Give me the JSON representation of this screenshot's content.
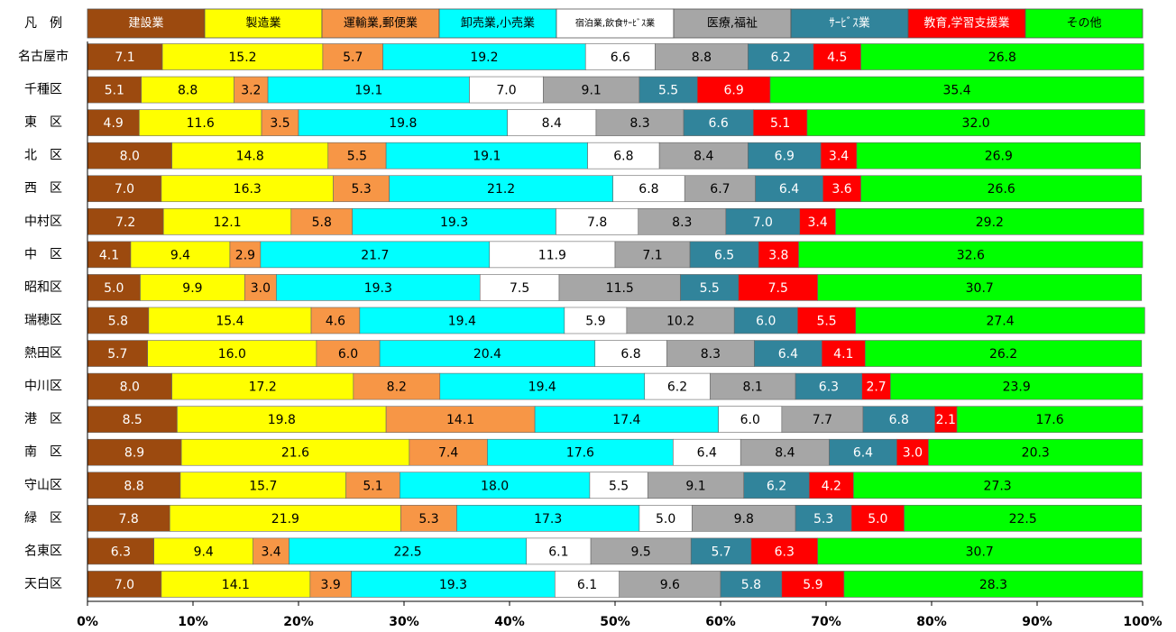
{
  "chart_data": {
    "type": "stacked_bar_horizontal",
    "legend_title": "凡　例",
    "categories": [
      "名古屋市",
      "千種区",
      "東　区",
      "北　区",
      "西　区",
      "中村区",
      "中　区",
      "昭和区",
      "瑞穂区",
      "熱田区",
      "中川区",
      "港　区",
      "南　区",
      "守山区",
      "緑　区",
      "名東区",
      "天白区"
    ],
    "series": [
      {
        "name": "建設業",
        "color": "#9c4a0f",
        "label_color": "#ffffff",
        "values": [
          7.1,
          5.1,
          4.9,
          8.0,
          7.0,
          7.2,
          4.1,
          5.0,
          5.8,
          5.7,
          8.0,
          8.5,
          8.9,
          8.8,
          7.8,
          6.3,
          7.0
        ],
        "value_labels": [
          "7.1",
          "5.1",
          "4.9",
          "8.0",
          "7.0",
          "7.2",
          "4.1",
          "5.0",
          "5.8",
          "5.7",
          "8.0",
          "8.5",
          "8.9",
          "8.8",
          "7.8",
          "6.3",
          "7.0"
        ]
      },
      {
        "name": "製造業",
        "color": "#ffff00",
        "label_color": "#000000",
        "values": [
          15.2,
          8.8,
          11.6,
          14.8,
          16.3,
          12.1,
          9.4,
          9.9,
          15.4,
          16.0,
          17.2,
          19.8,
          21.6,
          15.7,
          21.9,
          9.4,
          14.1
        ],
        "value_labels": [
          "15.2",
          "8.8",
          "11.6",
          "14.8",
          "16.3",
          "12.1",
          "9.4",
          "9.9",
          "15.4",
          "16.0",
          "17.2",
          "19.8",
          "21.6",
          "15.7",
          "21.9",
          "9.4",
          "14.1"
        ]
      },
      {
        "name": "運輸業,郵便業",
        "color": "#f79646",
        "label_color": "#000000",
        "values": [
          5.7,
          3.2,
          3.5,
          5.5,
          5.3,
          5.8,
          2.9,
          3.0,
          4.6,
          6.0,
          8.2,
          14.1,
          7.4,
          5.1,
          5.3,
          3.4,
          3.9
        ],
        "value_labels": [
          "5.7",
          "3.2",
          "3.5",
          "5.5",
          "5.3",
          "5.8",
          "2.9",
          "3.0",
          "4.6",
          "6.0",
          "8.2",
          "14.1",
          "7.4",
          "5.1",
          "5.3",
          "3.4",
          "3.9"
        ]
      },
      {
        "name": "卸売業,小売業",
        "color": "#00ffff",
        "label_color": "#000000",
        "values": [
          19.2,
          19.1,
          19.8,
          19.1,
          21.2,
          19.3,
          21.7,
          19.3,
          19.4,
          20.4,
          19.4,
          17.4,
          17.6,
          18.0,
          17.3,
          22.5,
          19.3
        ],
        "value_labels": [
          "19.2",
          "19.1",
          "19.8",
          "19.1",
          "21.2",
          "19.3",
          "21.7",
          "19.3",
          "19.4",
          "20.4",
          "19.4",
          "17.4",
          "17.6",
          "18.0",
          "17.3",
          "22.5",
          "19.3"
        ]
      },
      {
        "name": "宿泊業,飲食ｻｰﾋﾞｽ業",
        "color": "#ffffff",
        "label_color": "#000000",
        "values": [
          6.6,
          7.0,
          8.4,
          6.8,
          6.8,
          7.8,
          11.9,
          7.5,
          5.9,
          6.8,
          6.2,
          6.0,
          6.4,
          5.5,
          5.0,
          6.1,
          6.1
        ],
        "value_labels": [
          "6.6",
          "7.0",
          "8.4",
          "6.8",
          "6.8",
          "7.8",
          "11.9",
          "7.5",
          "5.9",
          "6.8",
          "6.2",
          "6.0",
          "6.4",
          "5.5",
          "5.0",
          "6.1",
          "6.1"
        ]
      },
      {
        "name": "医療,福祉",
        "color": "#a6a6a6",
        "label_color": "#000000",
        "values": [
          8.8,
          9.1,
          8.3,
          8.4,
          6.7,
          8.3,
          7.1,
          11.5,
          10.2,
          8.3,
          8.1,
          7.7,
          8.4,
          9.1,
          9.8,
          9.5,
          9.6
        ],
        "value_labels": [
          "8.8",
          "9.1",
          "8.3",
          "8.4",
          "6.7",
          "8.3",
          "7.1",
          "11.5",
          "10.2",
          "8.3",
          "8.1",
          "7.7",
          "8.4",
          "9.1",
          "9.8",
          "9.5",
          "9.6"
        ]
      },
      {
        "name": "ｻｰﾋﾞｽ業",
        "color": "#31849b",
        "label_color": "#ffffff",
        "values": [
          6.2,
          5.5,
          6.6,
          6.9,
          6.4,
          7.0,
          6.5,
          5.5,
          6.0,
          6.4,
          6.3,
          6.8,
          6.4,
          6.2,
          5.3,
          5.7,
          5.8
        ],
        "value_labels": [
          "6.2",
          "5.5",
          "6.6",
          "6.9",
          "6.4",
          "7.0",
          "6.5",
          "5.5",
          "6.0",
          "6.4",
          "6.3",
          "6.8",
          "6.4",
          "6.2",
          "5.3",
          "5.7",
          "5.8"
        ]
      },
      {
        "name": "教育,学習支援業",
        "color": "#ff0000",
        "label_color": "#ffffff",
        "values": [
          4.5,
          6.9,
          5.1,
          3.4,
          3.6,
          3.4,
          3.8,
          7.5,
          5.5,
          4.1,
          2.7,
          2.1,
          3.0,
          4.2,
          5.0,
          6.3,
          5.9
        ],
        "value_labels": [
          "4.5",
          "6.9",
          "5.1",
          "3.4",
          "3.6",
          "3.4",
          "3.8",
          "7.5",
          "5.5",
          "4.1",
          "2.7",
          "2.1",
          "3.0",
          "4.2",
          "5.0",
          "6.3",
          "5.9"
        ]
      },
      {
        "name": "その他",
        "color": "#00ff00",
        "label_color": "#000000",
        "values": [
          26.8,
          35.4,
          32.0,
          26.9,
          26.6,
          29.2,
          32.6,
          30.7,
          27.4,
          26.2,
          23.9,
          17.6,
          20.3,
          27.3,
          22.5,
          30.7,
          28.3
        ],
        "value_labels": [
          "26.8",
          "35.4",
          "32.0",
          "26.9",
          "26.6",
          "29.2",
          "32.6",
          "30.7",
          "27.4",
          "26.2",
          "23.9",
          "17.6",
          "20.3",
          "27.3",
          "22.5",
          "30.7",
          "28.3"
        ]
      }
    ],
    "xlim": [
      0,
      100
    ],
    "xticks": [
      {
        "value": 0,
        "label": "0%"
      },
      {
        "value": 10,
        "label": "10%"
      },
      {
        "value": 20,
        "label": "20%"
      },
      {
        "value": 30,
        "label": "30%"
      },
      {
        "value": 40,
        "label": "40%"
      },
      {
        "value": 50,
        "label": "50%"
      },
      {
        "value": 60,
        "label": "60%"
      },
      {
        "value": 70,
        "label": "70%"
      },
      {
        "value": 80,
        "label": "80%"
      },
      {
        "value": 90,
        "label": "90%"
      },
      {
        "value": 100,
        "label": "100%"
      }
    ]
  }
}
